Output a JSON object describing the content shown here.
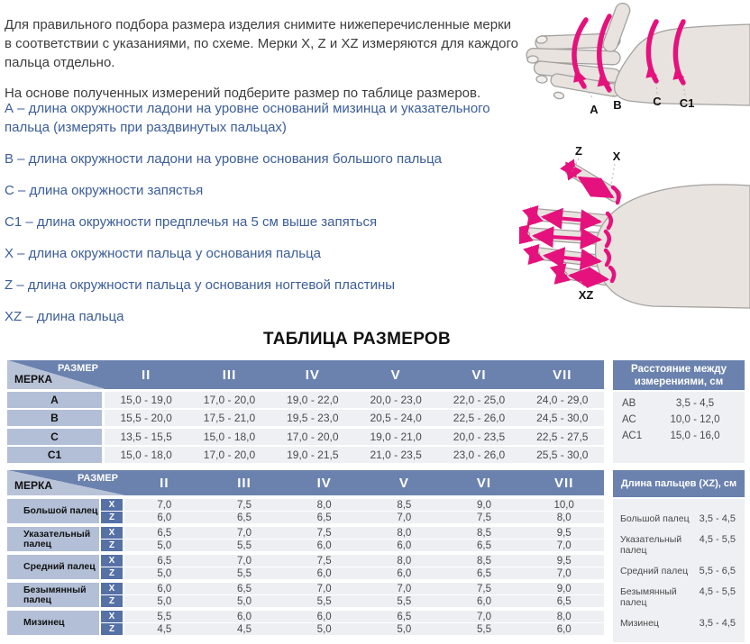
{
  "intro": {
    "p1": "Для правильного подбора размера изделия снимите нижеперечисленные мерки в соответствии с указаниями, по схеме. Мерки X, Z и XZ измеряются для каждого пальца отдельно.",
    "p2": "На основе полученных измерений подберите размер по таблице размеров."
  },
  "definitions": [
    "А – длина окружности ладони на уровне оснований мизинца и указательного пальца (измерять при раздвинутых пальцах)",
    "В – длина окружности ладони на уровне основания большого пальца",
    "С – длина окружности запястья",
    "С1 – длина окружности предплечья на 5 см выше запяться",
    "X – длина окружности пальца у основания пальца",
    "Z – длина окружности пальца у основания ногтевой пластины",
    "XZ – длина пальца"
  ],
  "diagram1": {
    "labels": [
      "А",
      "В",
      "С",
      "С1"
    ]
  },
  "diagram2": {
    "labels": {
      "z": "Z",
      "x": "X",
      "xz": "XZ"
    }
  },
  "title": "ТАБЛИЦА РАЗМЕРОВ",
  "table1": {
    "corner": {
      "size": "РАЗМЕР",
      "measure": "МЕРКА"
    },
    "columns": [
      "II",
      "III",
      "IV",
      "V",
      "VI",
      "VII"
    ],
    "rows": [
      {
        "label": "А",
        "values": [
          "15,0 - 19,0",
          "17,0 - 20,0",
          "19,0 - 22,0",
          "20,0 - 23,0",
          "22,0 - 25,0",
          "24,0 - 29,0"
        ]
      },
      {
        "label": "В",
        "values": [
          "15,5 - 20,0",
          "17,5 - 21,0",
          "19,5 - 23,0",
          "20,5 - 24,0",
          "22,5 - 26,0",
          "24,5 - 30,0"
        ]
      },
      {
        "label": "С",
        "values": [
          "13,5 - 15,5",
          "15,0 - 18,0",
          "17,0 - 20,0",
          "19,0 - 21,0",
          "20,0 - 23,5",
          "22,5 - 27,5"
        ]
      },
      {
        "label": "С1",
        "values": [
          "15,0 - 18,0",
          "17,0 - 20,0",
          "19,0 - 21,5",
          "21,0 - 23,5",
          "23,0 - 26,0",
          "25,5 - 30,0"
        ]
      }
    ]
  },
  "panel1": {
    "title": "Расстояние между измерениями, см",
    "rows": [
      {
        "label": "АВ",
        "value": "3,5 - 4,5"
      },
      {
        "label": "АС",
        "value": "10,0 - 12,0"
      },
      {
        "label": "АС1",
        "value": "15,0 - 16,0"
      }
    ]
  },
  "table2": {
    "corner": {
      "size": "РАЗМЕР",
      "measure": "МЕРКА"
    },
    "columns": [
      "II",
      "III",
      "IV",
      "V",
      "VI",
      "VII"
    ],
    "x_label": "X",
    "z_label": "Z",
    "groups": [
      {
        "label": "Большой палец",
        "x": [
          "7,0",
          "7,5",
          "8,0",
          "8,5",
          "9,0",
          "10,0"
        ],
        "z": [
          "6,0",
          "6,5",
          "6,5",
          "7,0",
          "7,5",
          "8,0"
        ]
      },
      {
        "label": "Указательный палец",
        "x": [
          "6,5",
          "7,0",
          "7,5",
          "8,0",
          "8,5",
          "9,5"
        ],
        "z": [
          "5,0",
          "5,5",
          "6,0",
          "6,0",
          "6,5",
          "7,0"
        ]
      },
      {
        "label": "Средний палец",
        "x": [
          "6,5",
          "7,0",
          "7,5",
          "8,0",
          "8,5",
          "9,5"
        ],
        "z": [
          "5,0",
          "5,5",
          "6,0",
          "6,0",
          "6,5",
          "7,0"
        ]
      },
      {
        "label": "Безымянный палец",
        "x": [
          "6,0",
          "6,5",
          "7,0",
          "7,0",
          "7,5",
          "9,0"
        ],
        "z": [
          "5,0",
          "5,0",
          "5,5",
          "5,5",
          "6,0",
          "6,5"
        ]
      },
      {
        "label": "Мизинец",
        "x": [
          "5,5",
          "6,0",
          "6,0",
          "6,5",
          "7,0",
          "8,0"
        ],
        "z": [
          "4,5",
          "4,5",
          "5,0",
          "5,0",
          "5,5",
          "6,0"
        ]
      }
    ]
  },
  "panel2": {
    "title": "Длина пальцев (XZ), см",
    "rows": [
      {
        "label": "Большой палец",
        "value": "3,5 - 4,5"
      },
      {
        "label": "Указательный палец",
        "value": "4,5 - 5,5"
      },
      {
        "label": "Средний палец",
        "value": "5,5 - 6,5"
      },
      {
        "label": "Безымянный палец",
        "value": "4,5 - 5,5"
      },
      {
        "label": "Мизинец",
        "value": "3,5 - 4,5"
      }
    ]
  },
  "colors": {
    "header_blue": "#6b82ae",
    "label_blue": "#b3bfd7",
    "corner_light_blue": "#b9c3d8",
    "chip_blue": "#5571a6",
    "row_gray": "#eef0f3",
    "definition_blue": "#3b5d99",
    "measure_magenta": "#e5127d",
    "hand_fill": "#e9e3df",
    "text_dark": "#3d3d3d"
  }
}
